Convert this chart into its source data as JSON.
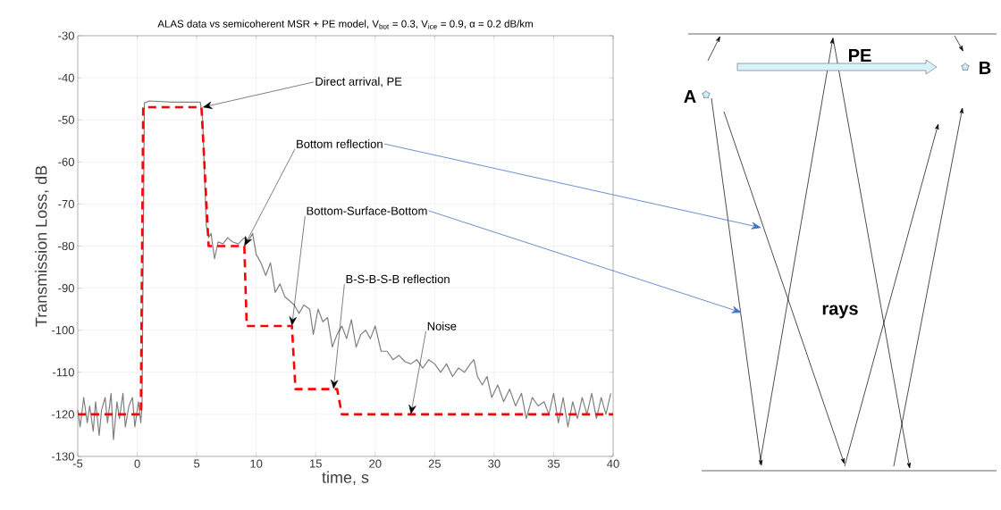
{
  "chart_data": {
    "type": "line",
    "title": "ALAS data vs semicoherent MSR + PE model, V$_{bot}$ = 0.3, V$_{ice}$ = 0.9, α = 0.2 dB/km",
    "xlabel": "time, s",
    "ylabel": "Transmission Loss, dB",
    "xlim": [
      -5,
      40
    ],
    "xticks": [
      -5,
      0,
      5,
      10,
      15,
      20,
      25,
      30,
      35,
      40
    ],
    "ylim": [
      -130,
      -30
    ],
    "yticks": [
      -130,
      -120,
      -110,
      -100,
      -90,
      -80,
      -70,
      -60,
      -50,
      -40,
      -30
    ],
    "grid": true,
    "marker": "none",
    "series": [
      {
        "color": "#808080",
        "line_style": "solid",
        "x": [
          -5,
          -4.8,
          -4.5,
          -4.2,
          -4,
          -3.7,
          -3.5,
          -3.2,
          -3,
          -2.7,
          -2.5,
          -2.2,
          -2,
          -1.7,
          -1.5,
          -1.2,
          -1,
          -0.7,
          -0.4,
          -0.2,
          0.1,
          0.3,
          0.4,
          0.6,
          1,
          3,
          5.3,
          5.5,
          5.8,
          6.0,
          6.2,
          6.5,
          6.8,
          7.2,
          7.6,
          8,
          8.5,
          9,
          9.3,
          9.7,
          10,
          10.4,
          10.8,
          11.2,
          11.6,
          12,
          12.4,
          12.8,
          13.2,
          13.6,
          14,
          14.5,
          14.8,
          15.2,
          15.6,
          16,
          16.4,
          16.8,
          17.2,
          17.6,
          18,
          18.4,
          18.8,
          19.2,
          19.6,
          20,
          20.5,
          21,
          21.5,
          22,
          22.5,
          23,
          23.5,
          24,
          24.5,
          25,
          25.5,
          26,
          26.5,
          27,
          27.5,
          28,
          28.3,
          28.6,
          29,
          29.4,
          29.8,
          30.3,
          30.8,
          31.3,
          31.8,
          32.3,
          32.7,
          33.2,
          33.7,
          34.2,
          34.6,
          35,
          35.4,
          35.8,
          36.2,
          36.6,
          37,
          37.4,
          37.8,
          38.2,
          38.6,
          39,
          39.4,
          39.8
        ],
        "values": [
          -119,
          -123,
          -116,
          -122,
          -118,
          -124,
          -117,
          -125,
          -119,
          -116,
          -122,
          -115,
          -126,
          -117,
          -121,
          -115,
          -123,
          -118,
          -116,
          -123,
          -117,
          -122,
          -118,
          -46,
          -45.5,
          -45.8,
          -45.8,
          -50,
          -75,
          -78,
          -77,
          -83,
          -79,
          -79.5,
          -78,
          -79,
          -79.5,
          -78,
          -79,
          -77,
          -82,
          -84,
          -87,
          -84,
          -91,
          -89,
          -92,
          -93,
          -94,
          -96,
          -94,
          -95,
          -101,
          -95,
          -98,
          -97,
          -104,
          -101,
          -99,
          -102,
          -97.5,
          -104,
          -101,
          -100,
          -102,
          -99,
          -105,
          -105,
          -107,
          -106,
          -107.5,
          -108,
          -107,
          -109,
          -107,
          -108,
          -110,
          -108,
          -111,
          -109,
          -110,
          -108,
          -107,
          -111,
          -113,
          -111,
          -116,
          -113,
          -117,
          -114,
          -118,
          -115,
          -121,
          -116,
          -118,
          -117,
          -120,
          -115,
          -122,
          -116,
          -123,
          -117,
          -121,
          -116,
          -120,
          -115,
          -121,
          -116,
          -120,
          -115
        ]
      },
      {
        "color": "#ff0000",
        "line_style": "dashed",
        "x": [
          -5,
          0.3,
          0.5,
          5.4,
          6.0,
          9,
          9.2,
          13,
          13.3,
          16.8,
          17.2,
          40
        ],
        "values": [
          -120,
          -120,
          -47,
          -47,
          -80,
          -80,
          -99,
          -99,
          -114,
          -114,
          -120,
          -120
        ]
      }
    ],
    "annotations": [
      {
        "text": "Direct arrival, PE",
        "x": 5.5,
        "y": -47
      },
      {
        "text": "Bottom reflection",
        "x": 9,
        "y": -80
      },
      {
        "text": "Bottom-Surface-Bottom",
        "x": 13,
        "y": -99
      },
      {
        "text": "B-S-B-S-B reflection",
        "x": 16.5,
        "y": -114
      },
      {
        "text": "Noise",
        "x": 23,
        "y": -120
      },
      "A",
      "B",
      "PE",
      "rays"
    ]
  }
}
